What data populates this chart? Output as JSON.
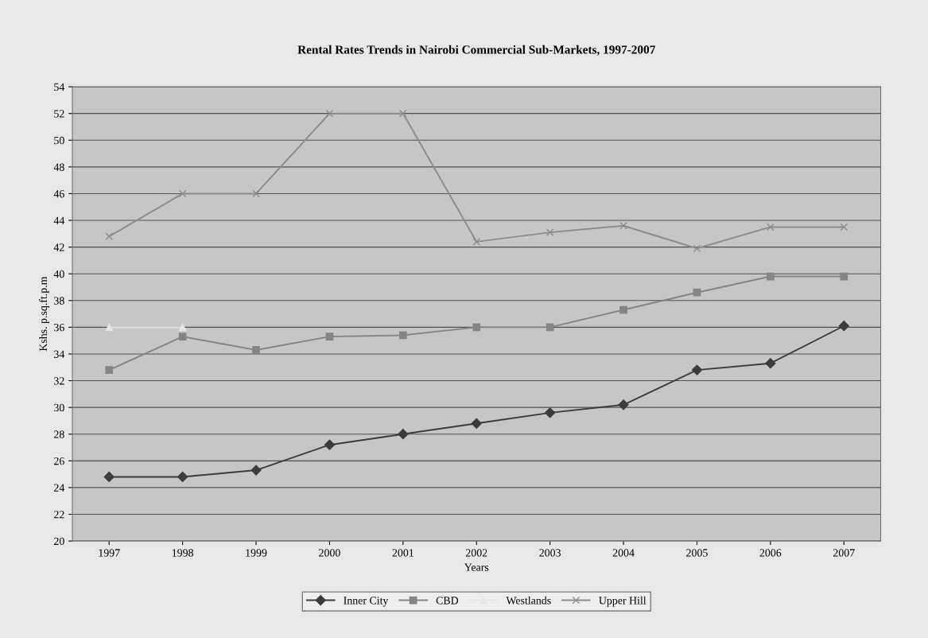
{
  "chart_data": {
    "type": "line",
    "title": "Rental Rates Trends in Nairobi Commercial Sub-Markets, 1997-2007",
    "xlabel": "Years",
    "ylabel": "Kshs. p.sq.ft.p.m",
    "categories": [
      "1997",
      "1998",
      "1999",
      "2000",
      "2001",
      "2002",
      "2003",
      "2004",
      "2005",
      "2006",
      "2007"
    ],
    "series": [
      {
        "name": "Inner City",
        "color": "#3c3c3c",
        "marker": "diamond",
        "values": [
          24.8,
          24.8,
          25.3,
          27.2,
          28.0,
          28.8,
          29.6,
          30.2,
          32.8,
          33.3,
          36.1
        ]
      },
      {
        "name": "CBD",
        "color": "#858585",
        "marker": "square",
        "values": [
          32.8,
          35.3,
          34.3,
          35.3,
          35.4,
          36.0,
          36.0,
          37.3,
          38.6,
          39.8,
          39.8
        ]
      },
      {
        "name": "Westlands",
        "color": "#e4e4e4",
        "marker": "triangle",
        "values": [
          36.0,
          36.0,
          null,
          null,
          null,
          null,
          null,
          null,
          null,
          null,
          null
        ]
      },
      {
        "name": "Upper Hill",
        "color": "#8c8c8c",
        "marker": "cross",
        "values": [
          42.8,
          46.0,
          46.0,
          52.0,
          52.0,
          42.4,
          43.1,
          43.6,
          41.9,
          43.5,
          43.5
        ]
      }
    ],
    "ylim": [
      20,
      54
    ],
    "yticks": [
      20,
      22,
      24,
      26,
      28,
      30,
      32,
      34,
      36,
      38,
      40,
      42,
      44,
      46,
      48,
      50,
      52,
      54
    ],
    "grid": "y",
    "legend": "bottom"
  }
}
